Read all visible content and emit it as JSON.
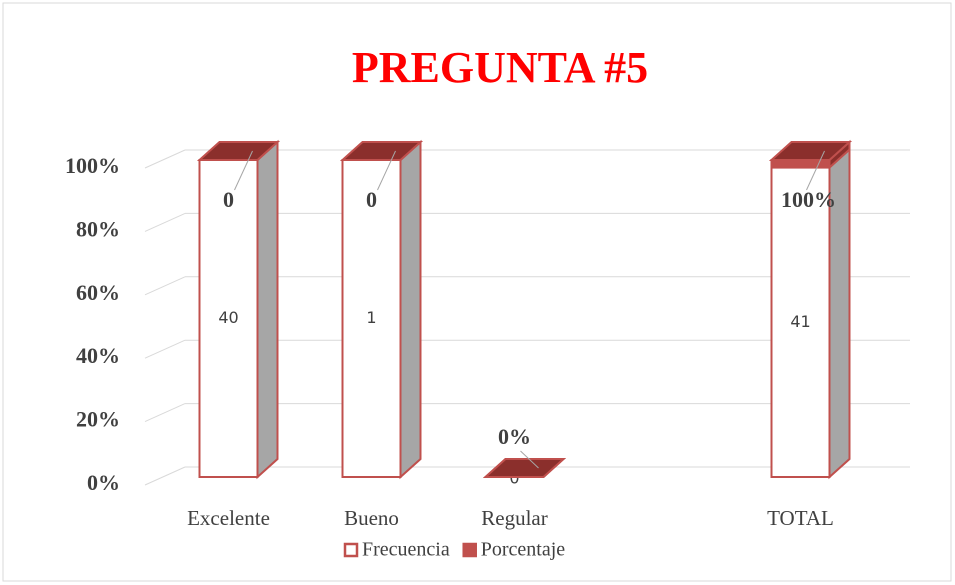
{
  "chart_data": {
    "type": "bar",
    "stacked": "percent",
    "three_d": true,
    "title": "PREGUNTA #5",
    "categories": [
      "Excelente",
      "Bueno",
      "Regular",
      null,
      "TOTAL"
    ],
    "series": [
      {
        "name": "Frecuencia",
        "color": "#ffffff",
        "values": [
          40,
          1,
          0,
          null,
          41
        ]
      },
      {
        "name": "Porcentaje",
        "color": "#c0504d",
        "values": [
          0,
          0,
          0,
          null,
          1
        ],
        "value_labels": [
          "0",
          "0",
          "0%",
          null,
          "100%"
        ]
      }
    ],
    "ylim": [
      0,
      100
    ],
    "yticks": [
      {
        "value": 0,
        "label": "0%"
      },
      {
        "value": 20,
        "label": "20%"
      },
      {
        "value": 40,
        "label": "40%"
      },
      {
        "value": 60,
        "label": "60%"
      },
      {
        "value": 80,
        "label": "80%"
      },
      {
        "value": 100,
        "label": "100%"
      }
    ],
    "grid": true,
    "legend": "bottom"
  }
}
